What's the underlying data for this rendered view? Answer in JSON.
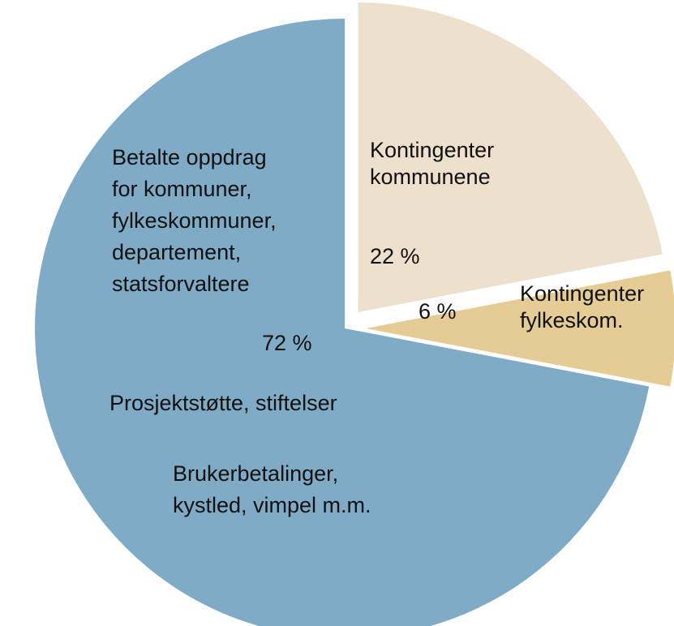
{
  "chart_data": {
    "type": "pie",
    "title": "",
    "slices": [
      {
        "name": "Kontingenter kommunene",
        "label_lines": [
          "Kontingenter",
          "kommunene"
        ],
        "value": 22,
        "value_label": "22 %",
        "color": "#ede0cd",
        "exploded": true
      },
      {
        "name": "Kontingenter fylkeskom.",
        "label_lines": [
          "Kontingenter",
          "fylkeskom."
        ],
        "value": 6,
        "value_label": "6 %",
        "color": "#e5cb94",
        "exploded": true
      },
      {
        "name": "Betalte oppdrag for kommuner, fylkeskommuner, departement, statsforvaltere / Prosjektstøtte, stiftelser / Brukerbetalinger, kystled, vimpel m.m.",
        "label_lines": [
          "Betalte oppdrag",
          "for kommuner,",
          "fylkeskommuner,",
          "departement,",
          "statsforvaltere"
        ],
        "value": 72,
        "value_label": "72 %",
        "color": "#80abc7",
        "exploded": false,
        "extra_labels": [
          [
            "Prosjektstøtte, stiftelser"
          ],
          [
            "Brukerbetalinger,",
            "kystled, vimpel m.m."
          ]
        ]
      }
    ],
    "legend": "none"
  }
}
